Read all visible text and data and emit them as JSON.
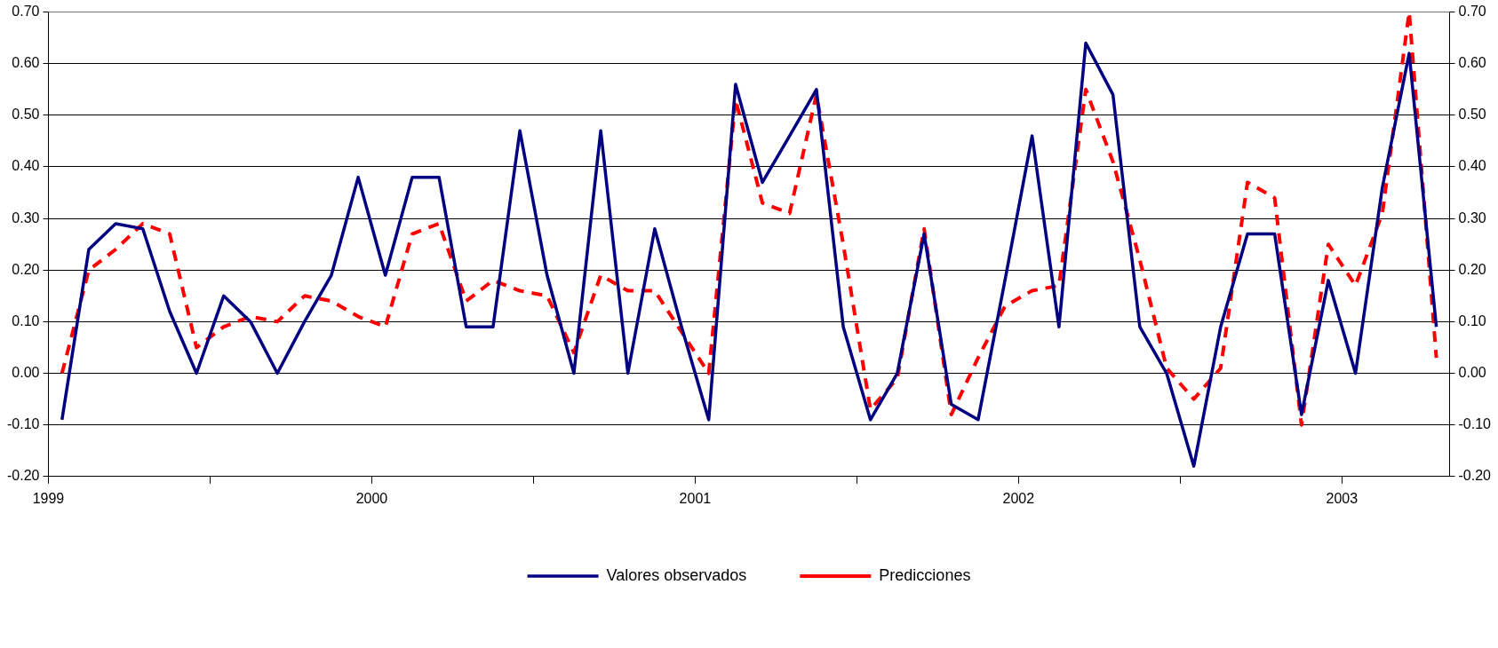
{
  "chart_data": {
    "type": "line",
    "x": [
      1999.042,
      1999.125,
      1999.208,
      1999.292,
      1999.375,
      1999.458,
      1999.542,
      1999.625,
      1999.708,
      1999.792,
      1999.875,
      1999.958,
      2000.042,
      2000.125,
      2000.208,
      2000.292,
      2000.375,
      2000.458,
      2000.542,
      2000.625,
      2000.708,
      2000.792,
      2000.875,
      2000.958,
      2001.042,
      2001.125,
      2001.208,
      2001.292,
      2001.375,
      2001.458,
      2001.542,
      2001.625,
      2001.708,
      2001.792,
      2001.875,
      2001.958,
      2002.042,
      2002.125,
      2002.208,
      2002.292,
      2002.375,
      2002.458,
      2002.542,
      2002.625,
      2002.708,
      2002.792,
      2002.875,
      2002.958,
      2003.042,
      2003.125,
      2003.208,
      2003.292
    ],
    "series": [
      {
        "name": "Valores observados",
        "color": "#000080",
        "line_style": "solid",
        "values": [
          -0.09,
          0.24,
          0.29,
          0.28,
          0.12,
          0.0,
          0.15,
          0.1,
          0.0,
          0.1,
          0.19,
          0.38,
          0.19,
          0.38,
          0.38,
          0.09,
          0.09,
          0.47,
          0.19,
          0.0,
          0.47,
          0.0,
          0.28,
          0.09,
          -0.09,
          0.56,
          0.37,
          0.46,
          0.55,
          0.09,
          -0.09,
          0.0,
          0.27,
          -0.06,
          -0.09,
          0.18,
          0.46,
          0.09,
          0.64,
          0.54,
          0.09,
          0.0,
          -0.18,
          0.09,
          0.27,
          0.27,
          -0.08,
          0.18,
          0.0,
          0.36,
          0.62,
          0.09
        ]
      },
      {
        "name": "Predicciones",
        "color": "#ff0000",
        "line_style": "dashed",
        "values": [
          0.0,
          0.2,
          0.24,
          0.29,
          0.27,
          0.05,
          0.09,
          0.11,
          0.1,
          0.15,
          0.14,
          0.11,
          0.09,
          0.27,
          0.29,
          0.14,
          0.18,
          0.16,
          0.15,
          0.04,
          0.19,
          0.16,
          0.16,
          0.08,
          0.0,
          0.53,
          0.33,
          0.31,
          0.54,
          0.25,
          -0.07,
          -0.01,
          0.28,
          -0.08,
          0.03,
          0.13,
          0.16,
          0.17,
          0.55,
          0.41,
          0.22,
          0.01,
          -0.05,
          0.01,
          0.37,
          0.34,
          -0.1,
          0.25,
          0.17,
          0.31,
          0.7,
          0.03
        ]
      }
    ],
    "xlim": [
      1999,
      2003.333
    ],
    "xticks": [
      1999,
      {
        "value": 1999.5,
        "label": null
      },
      2000,
      {
        "value": 2000.5,
        "label": null
      },
      2001,
      {
        "value": 2001.5,
        "label": null
      },
      2002,
      {
        "value": 2002.5,
        "label": null
      },
      2003
    ],
    "ylim": [
      -0.2,
      0.7
    ],
    "yticks": [
      {
        "value": -0.2,
        "label": "-0.20"
      },
      {
        "value": -0.1,
        "label": "-0.10"
      },
      {
        "value": 0,
        "label": "0.00"
      },
      {
        "value": 0.1,
        "label": "0.10"
      },
      {
        "value": 0.2,
        "label": "0.20"
      },
      {
        "value": 0.3,
        "label": "0.30"
      },
      {
        "value": 0.4,
        "label": "0.40"
      },
      {
        "value": 0.5,
        "label": "0.50"
      },
      {
        "value": 0.6,
        "label": "0.60"
      },
      {
        "value": 0.7,
        "label": "0.70"
      }
    ],
    "y2lim": [
      -0.2,
      0.7
    ],
    "y2ticks": [
      {
        "value": -0.2,
        "label": "-0.20"
      },
      {
        "value": -0.1,
        "label": "-0.10"
      },
      {
        "value": 0,
        "label": "0.00"
      },
      {
        "value": 0.1,
        "label": "0.10"
      },
      {
        "value": 0.2,
        "label": "0.20"
      },
      {
        "value": 0.3,
        "label": "0.30"
      },
      {
        "value": 0.4,
        "label": "0.40"
      },
      {
        "value": 0.5,
        "label": "0.50"
      },
      {
        "value": 0.6,
        "label": "0.60"
      },
      {
        "value": 0.7,
        "label": "0.70"
      }
    ],
    "grid": "y",
    "legend": "bottom",
    "marker": "none"
  }
}
